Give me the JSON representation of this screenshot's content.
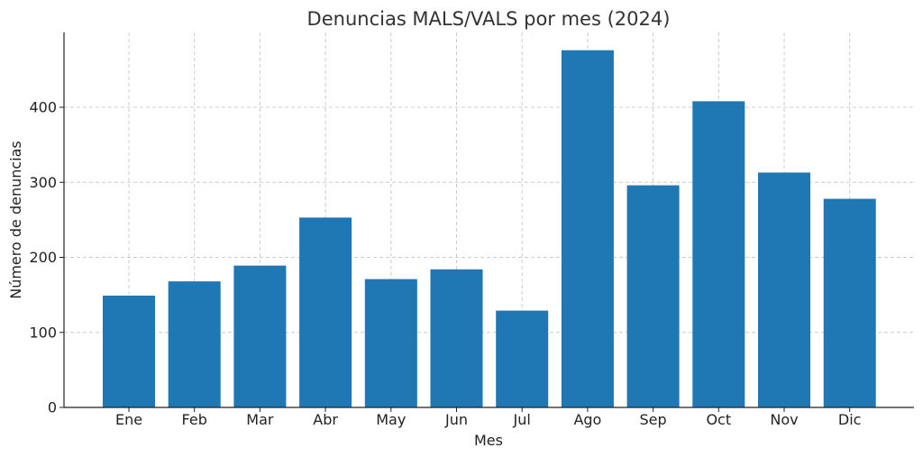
{
  "chart_data": {
    "type": "bar",
    "title": "Denuncias MALS/VALS por mes (2024)",
    "xlabel": "Mes",
    "ylabel": "Número de denuncias",
    "categories": [
      "Ene",
      "Feb",
      "Mar",
      "Abr",
      "May",
      "Jun",
      "Jul",
      "Ago",
      "Sep",
      "Oct",
      "Nov",
      "Dic"
    ],
    "values": [
      149,
      168,
      189,
      253,
      171,
      184,
      129,
      476,
      296,
      408,
      313,
      278
    ],
    "ylim": [
      0,
      500
    ],
    "yticks": [
      0,
      100,
      200,
      300,
      400
    ],
    "grid": true,
    "bar_color": "#1f77b4"
  }
}
